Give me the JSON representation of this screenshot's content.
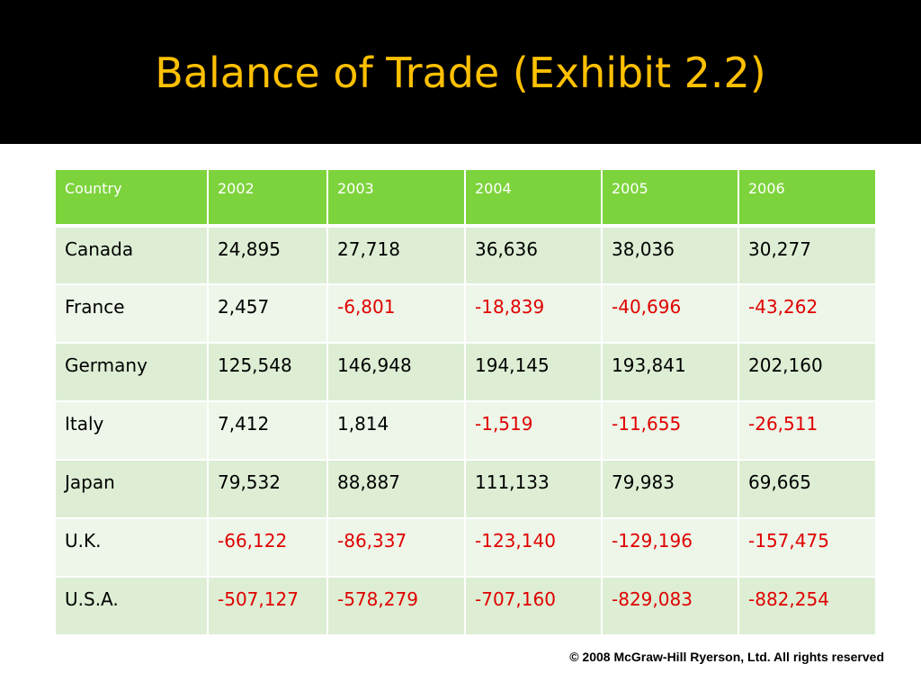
{
  "slide": {
    "title": "Balance of Trade (Exhibit 2.2)",
    "copyright": "© 2008 McGraw-Hill Ryerson, Ltd. All rights reserved"
  },
  "table": {
    "headers": [
      "Country",
      "2002",
      "2003",
      "2004",
      "2005",
      "2006"
    ],
    "rows": [
      [
        "Canada",
        "24,895",
        "27,718",
        "36,636",
        "38,036",
        "30,277"
      ],
      [
        "France",
        "2,457",
        "-6,801",
        "-18,839",
        "-40,696",
        "-43,262"
      ],
      [
        "Germany",
        "125,548",
        "146,948",
        "194,145",
        "193,841",
        "202,160"
      ],
      [
        "Italy",
        "7,412",
        "1,814",
        "-1,519",
        "-11,655",
        "-26,511"
      ],
      [
        "Japan",
        "79,532",
        "88,887",
        "111,133",
        "79,983",
        "69,665"
      ],
      [
        "U.K.",
        "-66,122",
        "-86,337",
        "-123,140",
        "-129,196",
        "-157,475"
      ],
      [
        "U.S.A.",
        "-507,127",
        "-578,279",
        "-707,160",
        "-829,083",
        "-882,254"
      ]
    ]
  },
  "colors": {
    "title_bar_bg": "#000000",
    "title_text": "#FFC000",
    "header_bg": "#7DD33C",
    "header_text": "#FFFFFF",
    "row_band_a": "#DDEED4",
    "row_band_b": "#EDF6E9",
    "negative_text": "#E00000",
    "positive_text": "#000000"
  }
}
